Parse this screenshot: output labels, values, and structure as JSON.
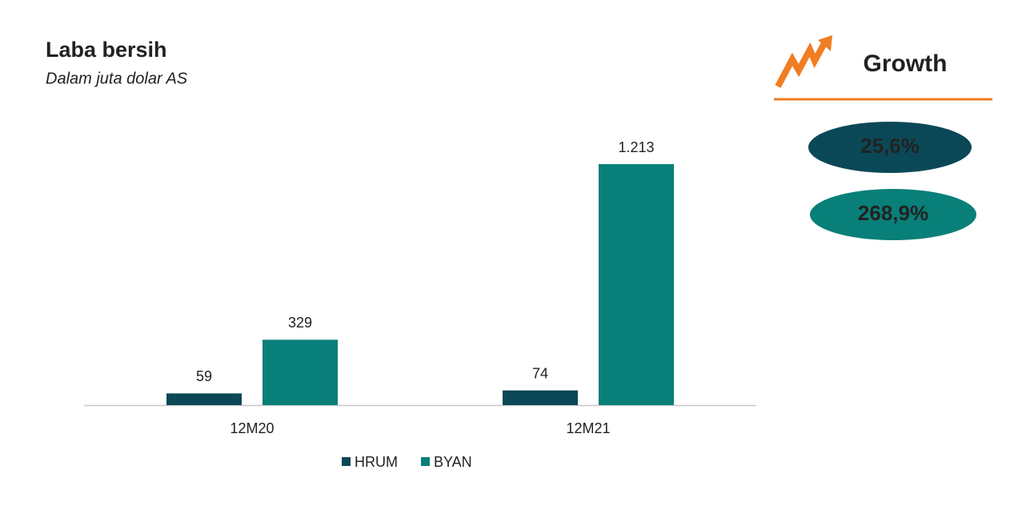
{
  "chart_data": {
    "type": "bar",
    "title": "Laba bersih",
    "subtitle": "Dalam juta dolar AS",
    "categories": [
      "12M20",
      "12M21"
    ],
    "series": [
      {
        "name": "HRUM",
        "color": "#0b4857",
        "values": [
          59,
          74
        ]
      },
      {
        "name": "BYAN",
        "color": "#087f78",
        "values": [
          329,
          1213
        ],
        "value_labels": [
          "329",
          "1.213"
        ]
      }
    ]
  },
  "growth": {
    "title": "Growth",
    "items": [
      "25,6%",
      "268,9%"
    ]
  }
}
